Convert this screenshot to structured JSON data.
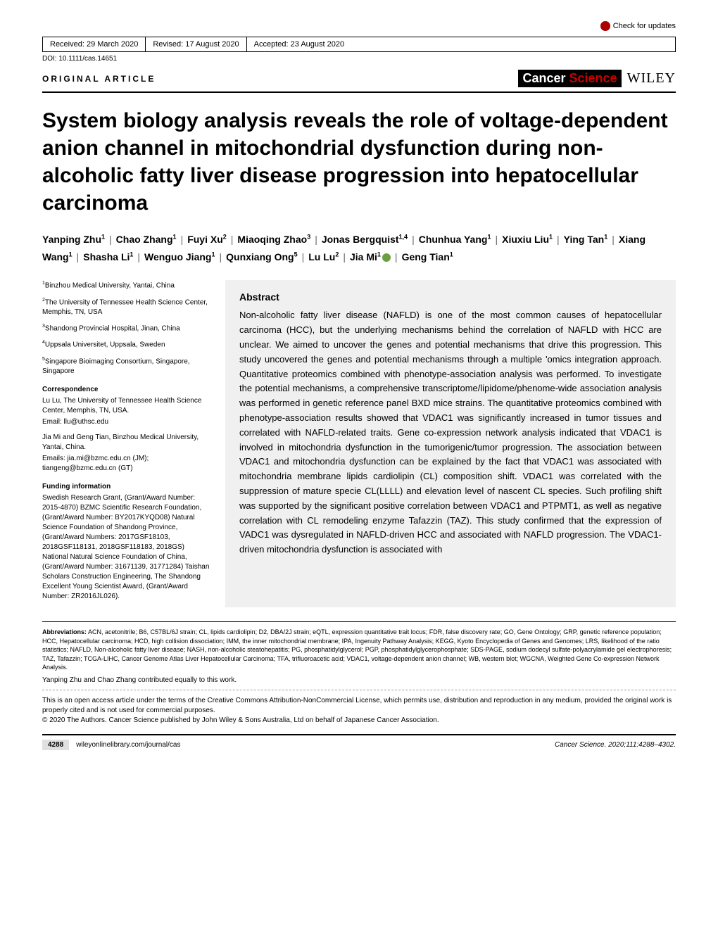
{
  "check_updates": "Check for updates",
  "header": {
    "received": "Received: 29 March 2020",
    "revised": "Revised: 17 August 2020",
    "accepted": "Accepted: 23 August 2020",
    "doi": "DOI: 10.1111/cas.14651"
  },
  "article_type": "ORIGINAL ARTICLE",
  "journal": {
    "cancer": "Cancer",
    "science": "Science",
    "wiley": "WILEY"
  },
  "title": "System biology analysis reveals the role of voltage-dependent anion channel in mitochondrial dysfunction during non-alcoholic fatty liver disease progression into hepatocellular carcinoma",
  "authors": [
    {
      "name": "Yanping Zhu",
      "aff": "1"
    },
    {
      "name": "Chao Zhang",
      "aff": "1"
    },
    {
      "name": "Fuyi Xu",
      "aff": "2"
    },
    {
      "name": "Miaoqing Zhao",
      "aff": "3"
    },
    {
      "name": "Jonas Bergquist",
      "aff": "1,4"
    },
    {
      "name": "Chunhua Yang",
      "aff": "1"
    },
    {
      "name": "Xiuxiu Liu",
      "aff": "1"
    },
    {
      "name": "Ying Tan",
      "aff": "1"
    },
    {
      "name": "Xiang Wang",
      "aff": "1"
    },
    {
      "name": "Shasha Li",
      "aff": "1"
    },
    {
      "name": "Wenguo Jiang",
      "aff": "1"
    },
    {
      "name": "Qunxiang Ong",
      "aff": "5"
    },
    {
      "name": "Lu Lu",
      "aff": "2"
    },
    {
      "name": "Jia Mi",
      "aff": "1",
      "orcid": true
    },
    {
      "name": "Geng Tian",
      "aff": "1"
    }
  ],
  "affiliations": [
    "Binzhou Medical University, Yantai, China",
    "The University of Tennessee Health Science Center, Memphis, TN, USA",
    "Shandong Provincial Hospital, Jinan, China",
    "Uppsala Universitet, Uppsala, Sweden",
    "Singapore Bioimaging Consortium, Singapore, Singapore"
  ],
  "correspondence_h": "Correspondence",
  "correspondence": [
    "Lu Lu, The University of Tennessee Health Science Center, Memphis, TN, USA.",
    "Email: llu@uthsc.edu",
    "Jia Mi and Geng Tian, Binzhou Medical University, Yantai, China.",
    "Emails: jia.mi@bzmc.edu.cn (JM); tiangeng@bzmc.edu.cn (GT)"
  ],
  "funding_h": "Funding information",
  "funding": "Swedish Research Grant, (Grant/Award Number: 2015-4870) BZMC Scientific Research Foundation, (Grant/Award Number: BY2017KYQD08) Natural Science Foundation of Shandong Province, (Grant/Award Numbers: 2017GSF18103, 2018GSF118131, 2018GSF118183, 2018GS) National Natural Science Foundation of China, (Grant/Award Number: 31671139, 31771284) Taishan Scholars Construction Engineering, The Shandong Excellent Young Scientist Award, (Grant/Award Number: ZR2016JL026).",
  "abstract_h": "Abstract",
  "abstract": "Non-alcoholic fatty liver disease (NAFLD) is one of the most common causes of hepatocellular carcinoma (HCC), but the underlying mechanisms behind the correlation of NAFLD with HCC are unclear. We aimed to uncover the genes and potential mechanisms that drive this progression. This study uncovered the genes and potential mechanisms through a multiple 'omics integration approach. Quantitative proteomics combined with phenotype-association analysis was performed. To investigate the potential mechanisms, a comprehensive transcriptome/lipidome/phenome-wide association analysis was performed in genetic reference panel BXD mice strains. The quantitative proteomics combined with phenotype-association results showed that VDAC1 was significantly increased in tumor tissues and correlated with NAFLD-related traits. Gene co-expression network analysis indicated that VDAC1 is involved in mitochondria dysfunction in the tumorigenic/tumor progression. The association between VDAC1 and mitochondria dysfunction can be explained by the fact that VDAC1 was associated with mitochondria membrane lipids cardiolipin (CL) composition shift. VDAC1 was correlated with the suppression of mature specie CL(LLLL) and elevation level of nascent CL species. Such profiling shift was supported by the significant positive correlation between VDAC1 and PTPMT1, as well as negative correlation with CL remodeling enzyme Tafazzin (TAZ). This study confirmed that the expression of VADC1 was dysregulated in NAFLD-driven HCC and associated with NAFLD progression. The VDAC1-driven mitochondria dysfunction is associated with",
  "abbrev_label": "Abbreviations:",
  "abbreviations": " ACN, acetonitrile; B6, C57BL/6J strain; CL, lipids cardiolipin; D2, DBA/2J strain; eQTL, expression quantitative trait locus; FDR, false discovery rate; GO, Gene Ontology; GRP, genetic reference population; HCC, Hepatocellular carcinoma; HCD, high collision dissociation; IMM, the inner mitochondrial membrane; IPA, Ingenuity Pathway Analysis; KEGG, Kyoto Encyclopedia of Genes and Genomes; LRS, likelihood of the ratio statistics; NAFLD, Non-alcoholic fatty liver disease; NASH, non-alcoholic steatohepatitis; PG, phosphatidylglycerol; PGP, phosphatidylglycerophosphate; SDS-PAGE, sodium dodecyl sulfate-polyacrylamide gel electrophoresis; TAZ, Tafazzin; TCGA-LIHC, Cancer Genome Atlas Liver Hepatocellular Carcinoma; TFA, trifluoroacetic acid; VDAC1, voltage-dependent anion channel; WB, western blot; WGCNA, Weighted Gene Co-expression Network Analysis.",
  "contrib": "Yanping Zhu and Chao Zhang contributed equally to this work.",
  "license1": "This is an open access article under the terms of the Creative Commons Attribution-NonCommercial License, which permits use, distribution and reproduction in any medium, provided the original work is properly cited and is not used for commercial purposes.",
  "license2": "© 2020 The Authors. Cancer Science published by John Wiley & Sons Australia, Ltd on behalf of Japanese Cancer Association.",
  "footer": {
    "page": "4288",
    "url": "wileyonlinelibrary.com/journal/cas",
    "citation": "Cancer Science. 2020;111:4288–4302."
  },
  "colors": {
    "bg": "#ffffff",
    "accent": "#c00000",
    "gray": "#f0f0f0"
  }
}
